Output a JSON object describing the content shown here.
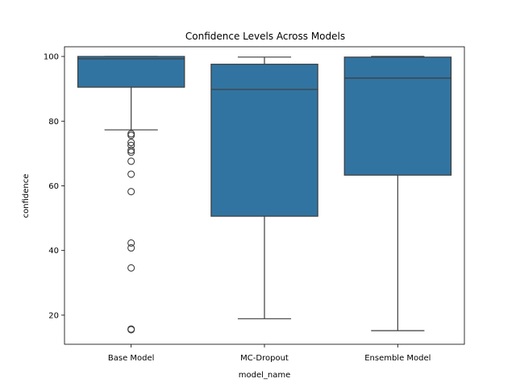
{
  "chart_data": {
    "type": "boxplot",
    "title": "Confidence Levels Across Models",
    "xlabel": "model_name",
    "ylabel": "confidence",
    "categories": [
      "Base Model",
      "MC-Dropout",
      "Ensemble Model"
    ],
    "y_ticks": [
      20,
      40,
      60,
      80,
      100
    ],
    "ylim": [
      11,
      103
    ],
    "grid": false,
    "box_color": "#3274a1",
    "line_color": "#3d3d3d",
    "boxes": [
      {
        "name": "Base Model",
        "whisker_low": 77.3,
        "q1": 90.5,
        "median": 99.3,
        "q3": 100.0,
        "whisker_high": 100.0,
        "outliers": [
          76.1,
          75.6,
          73.4,
          72.5,
          71.0,
          70.4,
          67.6,
          63.6,
          58.2,
          42.3,
          40.8,
          34.6,
          15.7,
          15.5
        ]
      },
      {
        "name": "MC-Dropout",
        "whisker_low": 18.9,
        "q1": 50.6,
        "median": 89.8,
        "q3": 97.6,
        "whisker_high": 99.8,
        "outliers": []
      },
      {
        "name": "Ensemble Model",
        "whisker_low": 15.2,
        "q1": 63.3,
        "median": 93.3,
        "q3": 99.8,
        "whisker_high": 100.0,
        "outliers": []
      }
    ]
  }
}
